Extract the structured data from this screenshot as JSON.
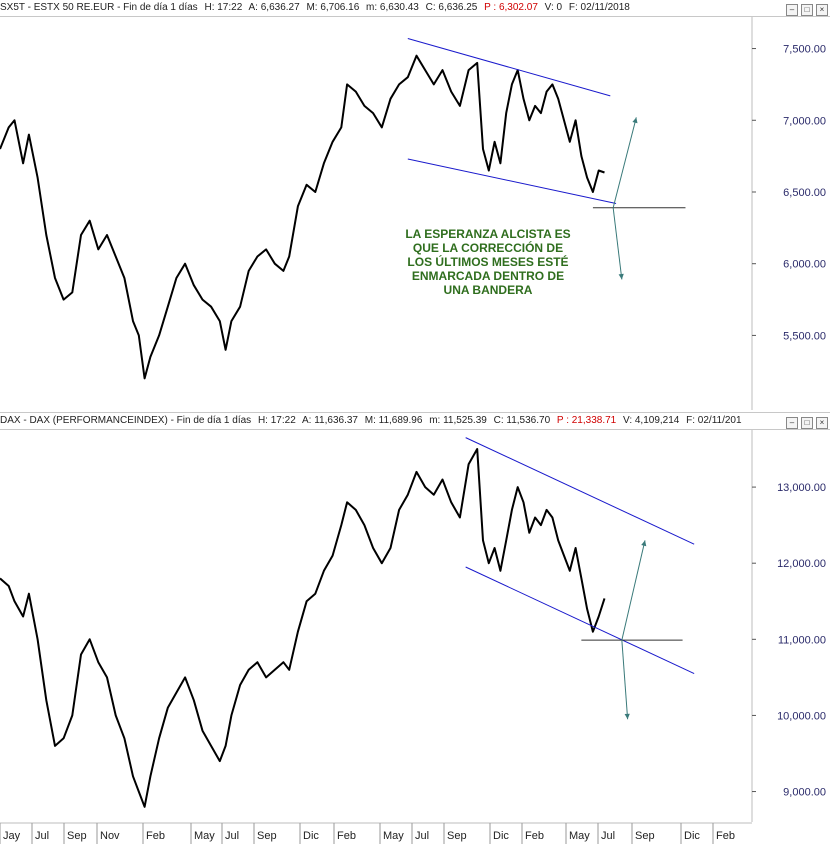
{
  "top_header": {
    "symbol": "SX5T - ESTX 50 RE.EUR - Fin de día 1 días",
    "h": "H: 17:22",
    "a": "A: 6,636.27",
    "m": "M: 6,706.16",
    "mn": "m: 6,630.43",
    "c": "C: 6,636.25",
    "p": "P : 6,302.07",
    "v": "V: 0",
    "f": "F: 02/11/2018"
  },
  "bottom_header": {
    "symbol": "DAX - DAX (PERFORMANCEINDEX) - Fin de día 1 días",
    "h": "H: 17:22",
    "a": "A: 11,636.37",
    "m": "M: 11,689.96",
    "mn": "m: 11,525.39",
    "c": "C: 11,536.70",
    "p": "P : 21,338.71",
    "v": "V: 4,109,214",
    "f": "F: 02/11/201"
  },
  "annotation": {
    "lines": [
      "LA ESPERANZA ALCISTA ES",
      "QUE LA CORRECCIÓN DE",
      "LOS ÚLTIMOS MESES ESTÉ",
      "ENMARCADA DENTRO DE",
      "UNA BANDERA"
    ]
  },
  "colors": {
    "price": "#000000",
    "channel": "#1a1acc",
    "target_arrow": "#3a7a7a",
    "axis_label": "#2a2a6a",
    "annotation": "#2f6e1e"
  },
  "chart_data": [
    {
      "type": "line",
      "series": [
        {
          "points": [
            [
              0,
              6800
            ],
            [
              3,
              6950
            ],
            [
              5,
              7000
            ],
            [
              8,
              6700
            ],
            [
              10,
              6900
            ],
            [
              13,
              6600
            ],
            [
              16,
              6200
            ],
            [
              19,
              5900
            ],
            [
              22,
              5750
            ],
            [
              25,
              5800
            ],
            [
              28,
              6200
            ],
            [
              31,
              6300
            ],
            [
              34,
              6100
            ],
            [
              37,
              6200
            ],
            [
              40,
              6050
            ],
            [
              43,
              5900
            ],
            [
              46,
              5600
            ],
            [
              48,
              5500
            ],
            [
              50,
              5200
            ],
            [
              52,
              5350
            ],
            [
              55,
              5500
            ],
            [
              58,
              5700
            ],
            [
              61,
              5900
            ],
            [
              64,
              6000
            ],
            [
              67,
              5850
            ],
            [
              70,
              5750
            ],
            [
              73,
              5700
            ],
            [
              76,
              5600
            ],
            [
              78,
              5400
            ],
            [
              80,
              5600
            ],
            [
              83,
              5700
            ],
            [
              86,
              5950
            ],
            [
              89,
              6050
            ],
            [
              92,
              6100
            ],
            [
              95,
              6000
            ],
            [
              98,
              5950
            ],
            [
              100,
              6050
            ],
            [
              103,
              6400
            ],
            [
              106,
              6550
            ],
            [
              109,
              6500
            ],
            [
              112,
              6700
            ],
            [
              115,
              6850
            ],
            [
              118,
              6950
            ],
            [
              120,
              7250
            ],
            [
              123,
              7200
            ],
            [
              126,
              7100
            ],
            [
              129,
              7050
            ],
            [
              132,
              6950
            ],
            [
              135,
              7150
            ],
            [
              138,
              7250
            ],
            [
              141,
              7300
            ],
            [
              144,
              7450
            ],
            [
              147,
              7350
            ],
            [
              150,
              7250
            ],
            [
              153,
              7350
            ],
            [
              156,
              7200
            ],
            [
              159,
              7100
            ],
            [
              162,
              7350
            ],
            [
              165,
              7400
            ],
            [
              167,
              6800
            ],
            [
              169,
              6650
            ],
            [
              171,
              6850
            ],
            [
              173,
              6700
            ],
            [
              175,
              7050
            ],
            [
              177,
              7250
            ],
            [
              179,
              7350
            ],
            [
              181,
              7150
            ],
            [
              183,
              7000
            ],
            [
              185,
              7100
            ],
            [
              187,
              7050
            ],
            [
              189,
              7200
            ],
            [
              191,
              7250
            ],
            [
              193,
              7150
            ],
            [
              195,
              7000
            ],
            [
              197,
              6850
            ],
            [
              199,
              7000
            ],
            [
              201,
              6750
            ],
            [
              203,
              6600
            ],
            [
              205,
              6500
            ],
            [
              207,
              6650
            ],
            [
              209,
              6636
            ]
          ]
        }
      ],
      "yticks": [
        5500,
        6000,
        6500,
        7000,
        7500
      ],
      "ytick_labels": [
        "5,500.00",
        "6,000.00",
        "6,500.00",
        "7,000.00",
        "7,500.00"
      ],
      "ylim": [
        4980,
        7720
      ],
      "xlim": [
        0,
        260
      ],
      "channel": {
        "upper": [
          [
            141,
            7570
          ],
          [
            211,
            7170
          ]
        ],
        "lower": [
          [
            141,
            6730
          ],
          [
            213,
            6420
          ]
        ],
        "base": [
          [
            205,
            6390
          ],
          [
            237,
            6390
          ]
        ],
        "arrow_up": [
          [
            212,
            6390
          ],
          [
            220,
            7020
          ]
        ],
        "arrow_down": [
          [
            212,
            6390
          ],
          [
            215,
            5890
          ]
        ]
      }
    },
    {
      "type": "line",
      "series": [
        {
          "points": [
            [
              0,
              11800
            ],
            [
              3,
              11700
            ],
            [
              5,
              11500
            ],
            [
              8,
              11300
            ],
            [
              10,
              11600
            ],
            [
              13,
              11000
            ],
            [
              16,
              10200
            ],
            [
              19,
              9600
            ],
            [
              22,
              9700
            ],
            [
              25,
              10000
            ],
            [
              28,
              10800
            ],
            [
              31,
              11000
            ],
            [
              34,
              10700
            ],
            [
              37,
              10500
            ],
            [
              40,
              10000
            ],
            [
              43,
              9700
            ],
            [
              46,
              9200
            ],
            [
              48,
              9000
            ],
            [
              50,
              8800
            ],
            [
              52,
              9200
            ],
            [
              55,
              9700
            ],
            [
              58,
              10100
            ],
            [
              61,
              10300
            ],
            [
              64,
              10500
            ],
            [
              67,
              10200
            ],
            [
              70,
              9800
            ],
            [
              73,
              9600
            ],
            [
              76,
              9400
            ],
            [
              78,
              9600
            ],
            [
              80,
              10000
            ],
            [
              83,
              10400
            ],
            [
              86,
              10600
            ],
            [
              89,
              10700
            ],
            [
              92,
              10500
            ],
            [
              95,
              10600
            ],
            [
              98,
              10700
            ],
            [
              100,
              10600
            ],
            [
              103,
              11100
            ],
            [
              106,
              11500
            ],
            [
              109,
              11600
            ],
            [
              112,
              11900
            ],
            [
              115,
              12100
            ],
            [
              118,
              12500
            ],
            [
              120,
              12800
            ],
            [
              123,
              12700
            ],
            [
              126,
              12500
            ],
            [
              129,
              12200
            ],
            [
              132,
              12000
            ],
            [
              135,
              12200
            ],
            [
              138,
              12700
            ],
            [
              141,
              12900
            ],
            [
              144,
              13200
            ],
            [
              147,
              13000
            ],
            [
              150,
              12900
            ],
            [
              153,
              13100
            ],
            [
              156,
              12800
            ],
            [
              159,
              12600
            ],
            [
              162,
              13300
            ],
            [
              165,
              13500
            ],
            [
              167,
              12300
            ],
            [
              169,
              12000
            ],
            [
              171,
              12200
            ],
            [
              173,
              11900
            ],
            [
              175,
              12300
            ],
            [
              177,
              12700
            ],
            [
              179,
              13000
            ],
            [
              181,
              12800
            ],
            [
              183,
              12400
            ],
            [
              185,
              12600
            ],
            [
              187,
              12500
            ],
            [
              189,
              12700
            ],
            [
              191,
              12600
            ],
            [
              193,
              12300
            ],
            [
              195,
              12100
            ],
            [
              197,
              11900
            ],
            [
              199,
              12200
            ],
            [
              201,
              11800
            ],
            [
              203,
              11400
            ],
            [
              205,
              11100
            ],
            [
              207,
              11300
            ],
            [
              209,
              11537
            ]
          ]
        }
      ],
      "yticks": [
        9000,
        10000,
        11000,
        12000,
        13000
      ],
      "ytick_labels": [
        "9,000.00",
        "10,000.00",
        "11,000.00",
        "12,000.00",
        "13,000.00"
      ],
      "ylim": [
        8600,
        13750
      ],
      "xlim": [
        0,
        260
      ],
      "channel": {
        "upper": [
          [
            161,
            13650
          ],
          [
            240,
            12250
          ]
        ],
        "lower": [
          [
            161,
            11950
          ],
          [
            240,
            10550
          ]
        ],
        "base": [
          [
            201,
            10990
          ],
          [
            236,
            10990
          ]
        ],
        "arrow_up": [
          [
            215,
            10990
          ],
          [
            223,
            12300
          ]
        ],
        "arrow_down": [
          [
            215,
            10990
          ],
          [
            217,
            9950
          ]
        ]
      },
      "xlabels": [
        "Jay",
        "Jul",
        "Sep",
        "Nov",
        "Feb",
        "May",
        "Jul",
        "Sep",
        "Dic",
        "Feb",
        "May",
        "Jul",
        "Sep",
        "Dic",
        "Feb",
        "May",
        "Jul",
        "Sep",
        "Dic",
        "Feb"
      ]
    }
  ]
}
